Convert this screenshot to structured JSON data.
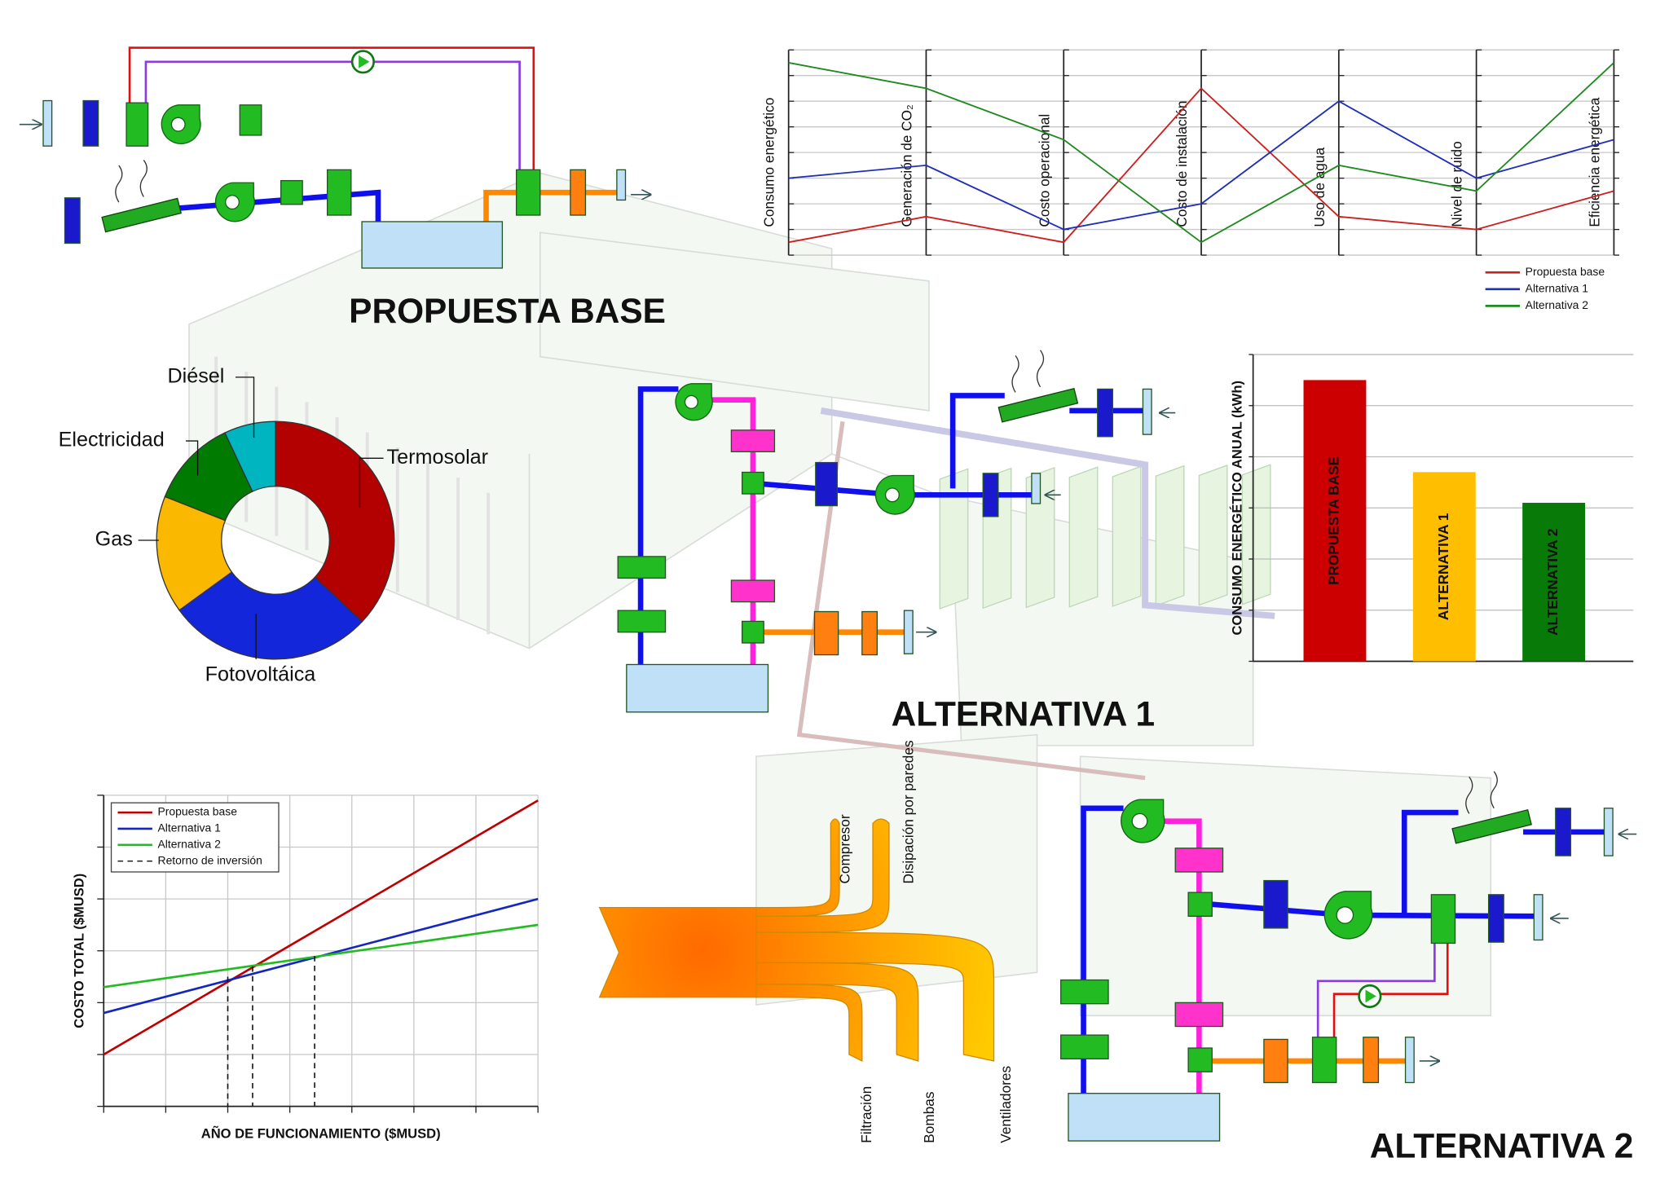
{
  "labels": {
    "propuesta_base": "PROPUESTA BASE",
    "alternativa_1": "ALTERNATIVA 1",
    "alternativa_2": "ALTERNATIVA 2"
  },
  "chart_data": [
    {
      "type": "parallel",
      "categories": [
        "Consumo energético",
        "Generación de CO₂",
        "Costo operacional",
        "Costo de instalación",
        "Uso de agua",
        "Nivel de ruido",
        "Eficiencia energética"
      ],
      "ylim": [
        0,
        8
      ],
      "yticks": [
        0,
        1,
        2,
        3,
        4,
        5,
        6,
        7,
        8
      ],
      "grid": true,
      "legend": "lower right",
      "series": [
        {
          "name": "Propuesta base",
          "color": "#cc1f1f",
          "values": [
            0.5,
            1.5,
            0.5,
            6.5,
            1.5,
            1,
            2.5
          ]
        },
        {
          "name": "Alternativa 1",
          "color": "#1f2fb8",
          "values": [
            3,
            3.5,
            1,
            2,
            6,
            3,
            4.5
          ]
        },
        {
          "name": "Alternativa 2",
          "color": "#1f8a1f",
          "values": [
            7.5,
            6.5,
            4.5,
            0.5,
            3.5,
            2.5,
            7.5
          ]
        }
      ]
    },
    {
      "type": "pie",
      "donut": true,
      "categories": [
        "Termosolar",
        "Fotovoltáica",
        "Gas",
        "Electricidad",
        "Diésel"
      ],
      "values": [
        37,
        28,
        16,
        12,
        7
      ],
      "colors": [
        "#b30000",
        "#1426d9",
        "#fbb800",
        "#007a00",
        "#00b5c0"
      ]
    },
    {
      "type": "bar",
      "y_label": "CONSUMO ENERGÉTICO ANUAL (kWh)",
      "categories": [
        "PROPUESTA BASE",
        "ALTERNATIVA 1",
        "ALTERNATIVA 2"
      ],
      "values": [
        5.5,
        3.7,
        3.1
      ],
      "colors": [
        "#cc0000",
        "#ffbf00",
        "#087a08"
      ],
      "ylim": [
        0,
        6
      ],
      "yticks": [
        0,
        1,
        2,
        3,
        4,
        5,
        6
      ],
      "grid": true
    },
    {
      "type": "line",
      "x_label": "AÑO DE FUNCIONAMIENTO ($MUSD)",
      "y_label": "COSTO TOTAL ($MUSD)",
      "x": [
        0,
        7
      ],
      "xlim": [
        0,
        7
      ],
      "xticks": [
        0,
        1,
        2,
        3,
        4,
        5,
        6,
        7
      ],
      "ylim": [
        0,
        6
      ],
      "yticks": [
        0,
        1,
        2,
        3,
        4,
        5,
        6
      ],
      "grid": true,
      "legend": "upper left",
      "series": [
        {
          "name": "Propuesta base",
          "color": "#c00000",
          "values": [
            1,
            5.9
          ]
        },
        {
          "name": "Alternativa 1",
          "color": "#1426c0",
          "values": [
            1.8,
            4
          ]
        },
        {
          "name": "Alternativa 2",
          "color": "#22bb22",
          "values": [
            2.3,
            3.5
          ]
        }
      ],
      "payback": {
        "name": "Retorno de inversión",
        "x": [
          2,
          2.4,
          3.4
        ],
        "y": [
          2.5,
          2.7,
          2.9
        ]
      }
    },
    {
      "type": "sankey",
      "categories": [
        "Compresor",
        "Disipación por paredes",
        "Ventiladores",
        "Bombas",
        "Filtración"
      ],
      "values": [
        8,
        15,
        28,
        20,
        12
      ],
      "directions": [
        "up",
        "up",
        "down",
        "down",
        "down"
      ]
    }
  ]
}
